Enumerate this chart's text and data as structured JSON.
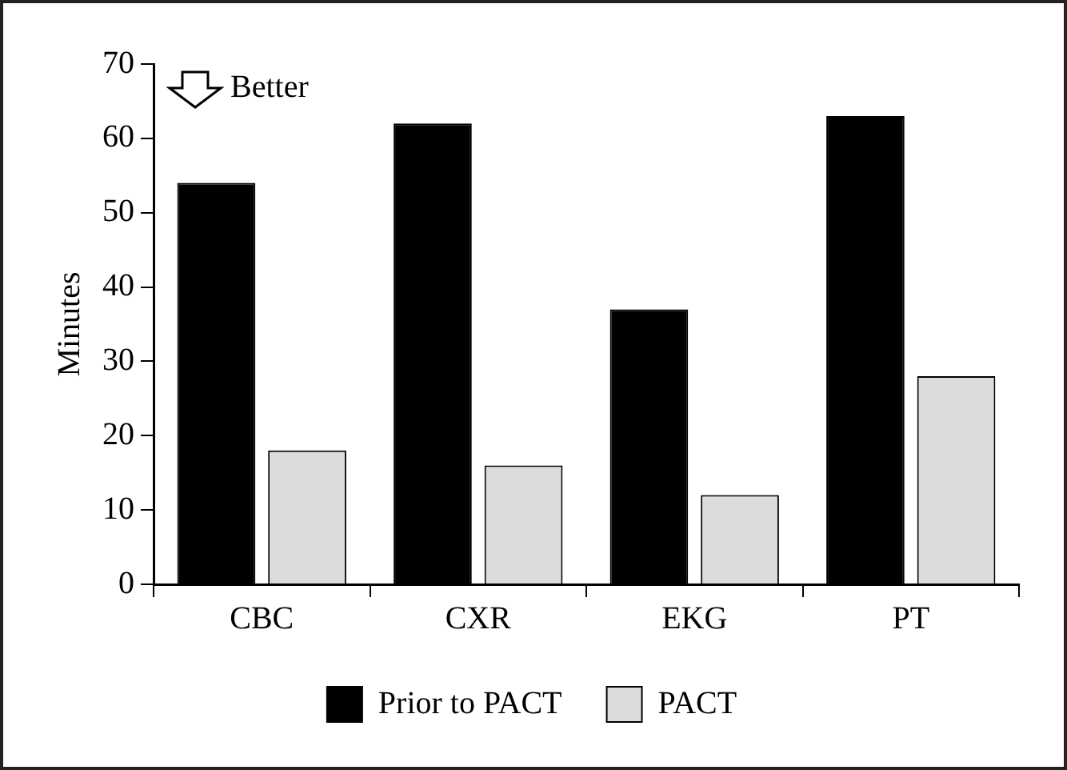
{
  "chart_data": {
    "type": "bar",
    "ylabel": "Minutes",
    "categories": [
      "CBC",
      "CXR",
      "EKG",
      "PT"
    ],
    "series": [
      {
        "name": "Prior to PACT",
        "color": "#000000",
        "values": [
          54,
          62,
          37,
          63
        ]
      },
      {
        "name": "PACT",
        "color": "#dcdcdc",
        "values": [
          18,
          16,
          12,
          28
        ]
      }
    ],
    "ylim": [
      0,
      70
    ],
    "yticks": [
      0,
      10,
      20,
      30,
      40,
      50,
      60,
      70
    ],
    "grid": false,
    "legend": "bottom",
    "annotations": [
      "Better"
    ]
  }
}
